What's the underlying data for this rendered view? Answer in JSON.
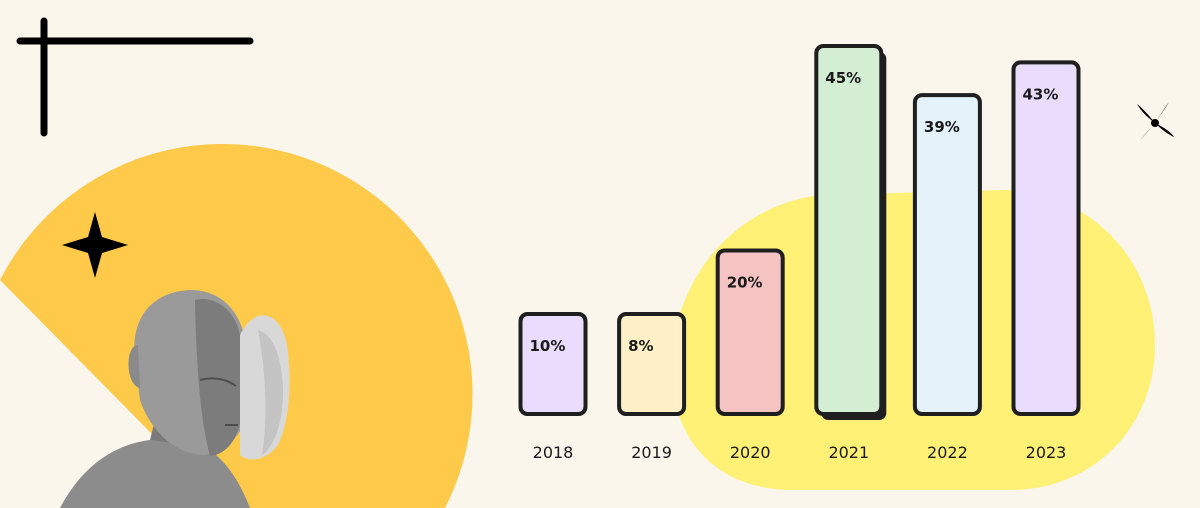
{
  "colors": {
    "background": "#fbf6ec",
    "pie_orange": "#ffc94a",
    "blob_yellow": "#fff176",
    "outline": "#1f1f1f",
    "bar_colors": [
      "#e9dcfd",
      "#fff0c8",
      "#f6c3c3",
      "#d3eed3",
      "#e4f3f9",
      "#e9dcfd"
    ]
  },
  "decorations": {
    "corner_mark": "corner-cross-lines",
    "star": "four-point-star-icon",
    "sparkle": "propeller-sparkle-icon",
    "figure": "half-masked-head-statue"
  },
  "chart_data": {
    "type": "bar",
    "categories": [
      "2018",
      "2019",
      "2020",
      "2021",
      "2022",
      "2023"
    ],
    "values": [
      10,
      8,
      20,
      45,
      39,
      43
    ],
    "value_labels": [
      "10%",
      "8%",
      "20%",
      "45%",
      "39%",
      "43%"
    ],
    "highlighted_category": "2021",
    "title": "",
    "xlabel": "",
    "ylabel": "",
    "ylim": [
      0,
      45
    ],
    "grid": false,
    "legend": "none"
  }
}
